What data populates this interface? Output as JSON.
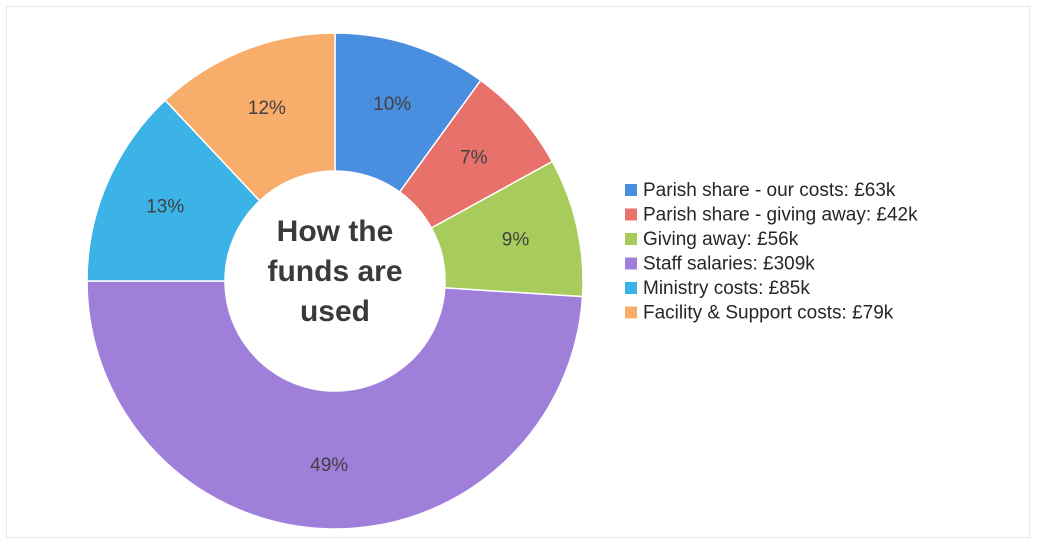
{
  "chart_data": {
    "type": "pie",
    "donut": true,
    "title": "How the funds are used",
    "categories": [
      "Parish share - our costs: £63k",
      "Parish share - giving away: £42k",
      "Giving away: £56k",
      "Staff salaries: £309k",
      "Ministry costs: £85k",
      "Facility & Support costs: £79k"
    ],
    "values": [
      10,
      7,
      9,
      49,
      13,
      12
    ],
    "value_labels": [
      "10%",
      "7%",
      "9%",
      "49%",
      "13%",
      "12%"
    ],
    "colors": [
      "#4a8ee0",
      "#e8716b",
      "#a8cc5c",
      "#a07fdb",
      "#3bb3e6",
      "#f8ad6b"
    ],
    "legend": "right"
  }
}
